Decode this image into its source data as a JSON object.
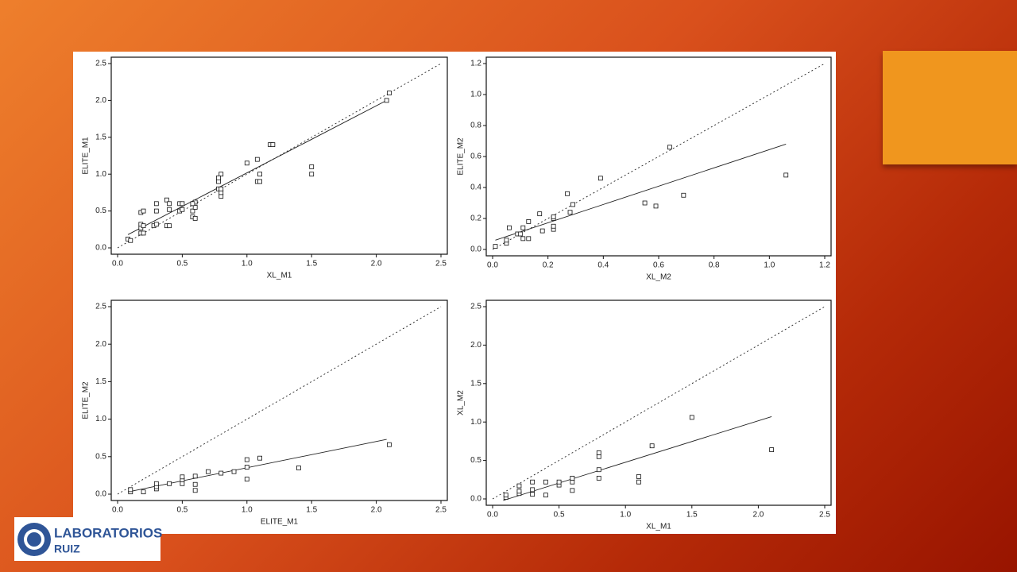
{
  "chart_data": [
    {
      "type": "scatter",
      "x_label": "XL_M1",
      "y_label": "ELITE_M1",
      "xlim": [
        0,
        2.5
      ],
      "ylim": [
        0,
        2.5
      ],
      "xticks": [
        {
          "value": 0,
          "label": "0.0"
        },
        {
          "value": 0.5,
          "label": "0.5"
        },
        {
          "value": 1,
          "label": "1.0"
        },
        {
          "value": 1.5,
          "label": "1.5"
        },
        {
          "value": 2,
          "label": "2.0"
        },
        {
          "value": 2.5,
          "label": "2.5"
        }
      ],
      "yticks": [
        {
          "value": 0,
          "label": "0.0"
        },
        {
          "value": 0.5,
          "label": "0.5"
        },
        {
          "value": 1,
          "label": "1.0"
        },
        {
          "value": 1.5,
          "label": "1.5"
        },
        {
          "value": 2,
          "label": "2.0"
        },
        {
          "value": 2.5,
          "label": "2.5"
        }
      ],
      "points": {
        "x": [
          0.08,
          0.1,
          0.18,
          0.18,
          0.18,
          0.18,
          0.2,
          0.2,
          0.2,
          0.28,
          0.3,
          0.3,
          0.3,
          0.38,
          0.38,
          0.4,
          0.4,
          0.4,
          0.48,
          0.48,
          0.5,
          0.5,
          0.58,
          0.58,
          0.6,
          0.6,
          0.6,
          0.58,
          0.78,
          0.78,
          0.8,
          0.8,
          0.8,
          0.8,
          0.78,
          1.0,
          1.08,
          1.08,
          1.1,
          1.1,
          1.18,
          1.2,
          1.5,
          1.5,
          2.08,
          2.1
        ],
        "y": [
          0.12,
          0.1,
          0.2,
          0.27,
          0.32,
          0.48,
          0.5,
          0.2,
          0.3,
          0.3,
          0.5,
          0.6,
          0.32,
          0.3,
          0.65,
          0.6,
          0.52,
          0.3,
          0.5,
          0.6,
          0.52,
          0.6,
          0.5,
          0.42,
          0.4,
          0.55,
          0.62,
          0.6,
          0.8,
          0.9,
          0.7,
          0.75,
          0.8,
          1.0,
          0.95,
          1.15,
          1.2,
          0.9,
          0.9,
          1.0,
          1.4,
          1.4,
          1.1,
          1.0,
          2.0,
          2.1
        ]
      },
      "fit": {
        "x": [
          0.08,
          2.08
        ],
        "y": [
          0.18,
          2.0
        ]
      },
      "reference": {
        "x": [
          0,
          2.5
        ],
        "y": [
          0,
          2.5
        ]
      }
    },
    {
      "type": "scatter",
      "x_label": "XL_M2",
      "y_label": "ELITE_M2",
      "xlim": [
        0,
        1.2
      ],
      "ylim": [
        0,
        1.2
      ],
      "xticks": [
        {
          "value": 0,
          "label": "0.0"
        },
        {
          "value": 0.2,
          "label": "0.2"
        },
        {
          "value": 0.4,
          "label": "0.4"
        },
        {
          "value": 0.6,
          "label": "0.6"
        },
        {
          "value": 0.8,
          "label": "0.8"
        },
        {
          "value": 1,
          "label": "1.0"
        },
        {
          "value": 1.2,
          "label": "1.2"
        }
      ],
      "yticks": [
        {
          "value": 0,
          "label": "0.0"
        },
        {
          "value": 0.2,
          "label": "0.2"
        },
        {
          "value": 0.4,
          "label": "0.4"
        },
        {
          "value": 0.6,
          "label": "0.6"
        },
        {
          "value": 0.8,
          "label": "0.8"
        },
        {
          "value": 1,
          "label": "1.0"
        },
        {
          "value": 1.2,
          "label": "1.2"
        }
      ],
      "points": {
        "x": [
          0.01,
          0.05,
          0.05,
          0.06,
          0.09,
          0.1,
          0.11,
          0.11,
          0.13,
          0.13,
          0.17,
          0.18,
          0.22,
          0.22,
          0.22,
          0.22,
          0.27,
          0.28,
          0.29,
          0.39,
          0.55,
          0.59,
          0.64,
          0.69,
          1.06
        ],
        "y": [
          0.02,
          0.04,
          0.06,
          0.14,
          0.1,
          0.1,
          0.14,
          0.07,
          0.07,
          0.18,
          0.23,
          0.12,
          0.13,
          0.15,
          0.2,
          0.21,
          0.36,
          0.24,
          0.29,
          0.46,
          0.3,
          0.28,
          0.66,
          0.35,
          0.48
        ]
      },
      "fit": {
        "x": [
          0.01,
          1.06
        ],
        "y": [
          0.06,
          0.68
        ]
      },
      "reference": {
        "x": [
          0,
          1.2
        ],
        "y": [
          0,
          1.2
        ]
      }
    },
    {
      "type": "scatter",
      "x_label": "ELITE_M1",
      "y_label": "ELITE_M2",
      "xlim": [
        0,
        2.5
      ],
      "ylim": [
        0,
        2.5
      ],
      "xticks": [
        {
          "value": 0,
          "label": "0.0"
        },
        {
          "value": 0.5,
          "label": "0.5"
        },
        {
          "value": 1,
          "label": "1.0"
        },
        {
          "value": 1.5,
          "label": "1.5"
        },
        {
          "value": 2,
          "label": "2.0"
        },
        {
          "value": 2.5,
          "label": "2.5"
        }
      ],
      "yticks": [
        {
          "value": 0,
          "label": "0.0"
        },
        {
          "value": 0.5,
          "label": "0.5"
        },
        {
          "value": 1,
          "label": "1.0"
        },
        {
          "value": 1.5,
          "label": "1.5"
        },
        {
          "value": 2,
          "label": "2.0"
        },
        {
          "value": 2.5,
          "label": "2.5"
        }
      ],
      "points": {
        "x": [
          0.1,
          0.1,
          0.2,
          0.3,
          0.3,
          0.3,
          0.4,
          0.5,
          0.5,
          0.5,
          0.6,
          0.6,
          0.6,
          0.7,
          0.8,
          0.9,
          1.0,
          1.0,
          1.0,
          1.1,
          1.4,
          2.1
        ],
        "y": [
          0.03,
          0.06,
          0.03,
          0.07,
          0.1,
          0.14,
          0.14,
          0.14,
          0.19,
          0.23,
          0.05,
          0.13,
          0.24,
          0.3,
          0.28,
          0.3,
          0.2,
          0.36,
          0.46,
          0.48,
          0.35,
          0.66
        ]
      },
      "fit": {
        "x": [
          0.08,
          2.08
        ],
        "y": [
          0.03,
          0.73
        ]
      },
      "reference": {
        "x": [
          0,
          2.5
        ],
        "y": [
          0,
          2.5
        ]
      }
    },
    {
      "type": "scatter",
      "x_label": "XL_M1",
      "y_label": "XL_M2",
      "xlim": [
        0,
        2.5
      ],
      "ylim": [
        0,
        2.5
      ],
      "xticks": [
        {
          "value": 0,
          "label": "0.0"
        },
        {
          "value": 0.5,
          "label": "0.5"
        },
        {
          "value": 1,
          "label": "1.0"
        },
        {
          "value": 1.5,
          "label": "1.5"
        },
        {
          "value": 2,
          "label": "2.0"
        },
        {
          "value": 2.5,
          "label": "2.5"
        }
      ],
      "yticks": [
        {
          "value": 0,
          "label": "0.0"
        },
        {
          "value": 0.5,
          "label": "0.5"
        },
        {
          "value": 1,
          "label": "1.0"
        },
        {
          "value": 1.5,
          "label": "1.5"
        },
        {
          "value": 2,
          "label": "2.0"
        },
        {
          "value": 2.5,
          "label": "2.5"
        }
      ],
      "points": {
        "x": [
          0.1,
          0.1,
          0.2,
          0.2,
          0.2,
          0.3,
          0.3,
          0.3,
          0.4,
          0.4,
          0.5,
          0.5,
          0.6,
          0.6,
          0.6,
          0.8,
          0.8,
          0.8,
          0.8,
          1.1,
          1.1,
          1.2,
          1.5,
          2.1
        ],
        "y": [
          0.02,
          0.05,
          0.07,
          0.1,
          0.17,
          0.06,
          0.12,
          0.22,
          0.05,
          0.22,
          0.18,
          0.22,
          0.11,
          0.22,
          0.27,
          0.27,
          0.38,
          0.55,
          0.6,
          0.22,
          0.29,
          0.69,
          1.06,
          0.64
        ]
      },
      "fit": {
        "x": [
          0.08,
          2.1
        ],
        "y": [
          -0.02,
          1.07
        ]
      },
      "reference": {
        "x": [
          0,
          2.5
        ],
        "y": [
          0,
          2.5
        ]
      }
    }
  ],
  "logo": {
    "line1": "LABORATORIOS",
    "line2": "RUIZ"
  }
}
